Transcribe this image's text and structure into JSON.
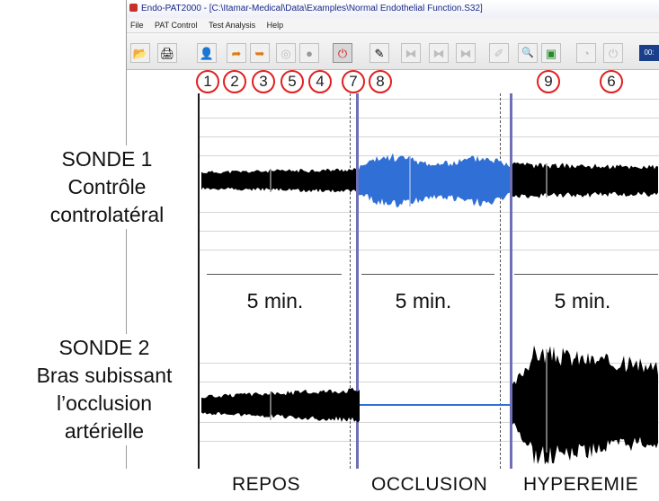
{
  "window": {
    "title": "Endo-PAT2000 - [C:\\Itamar-Medical\\Data\\Examples\\Normal Endothelial Function.S32]"
  },
  "menu": {
    "items": [
      "File",
      "PAT Control",
      "Test Analysis",
      "Help"
    ]
  },
  "toolbar": {
    "buttons": [
      {
        "name": "open-file-icon",
        "glyph": "📂"
      },
      {
        "name": "print-icon",
        "glyph": "🖨"
      },
      {
        "name": "patient-info-icon",
        "glyph": "👤"
      },
      {
        "name": "export-icon",
        "glyph": "➦"
      },
      {
        "name": "import-icon",
        "glyph": "➥"
      },
      {
        "name": "calibrate-icon",
        "glyph": "◎"
      },
      {
        "name": "record-icon",
        "glyph": "●"
      },
      {
        "name": "stop-icon",
        "glyph": "⏻"
      },
      {
        "name": "marker-icon",
        "glyph": "✎"
      },
      {
        "name": "segment-start-icon",
        "glyph": "⧓"
      },
      {
        "name": "segment-mid-icon",
        "glyph": "⧓"
      },
      {
        "name": "segment-end-icon",
        "glyph": "⧓"
      },
      {
        "name": "pen-icon",
        "glyph": "✐"
      },
      {
        "name": "zoom-icon",
        "glyph": "🔍"
      },
      {
        "name": "spreadsheet-icon",
        "glyph": "▣"
      },
      {
        "name": "timer-icon",
        "glyph": "◔"
      },
      {
        "name": "power-icon",
        "glyph": "⏻"
      }
    ],
    "counter": "00:"
  },
  "callouts": [
    "1",
    "2",
    "3",
    "5",
    "4",
    "7",
    "8",
    "9",
    "6"
  ],
  "probe1": {
    "line1": "SONDE 1",
    "line2": "Contrôle",
    "line3": "controlatéral"
  },
  "probe2": {
    "line1": "SONDE 2",
    "line2": "Bras subissant",
    "line3": "l’occlusion",
    "line4": "artérielle"
  },
  "durations": [
    "5 min.",
    "5 min.",
    "5 min."
  ],
  "phases": {
    "rest": "REPOS",
    "occlusion": "OCCLUSION",
    "hyperemia": "HYPEREMIE"
  },
  "colors": {
    "signal": "#000000",
    "occlusion_highlight": "#2f6fd6",
    "marker_line": "#6f6fb5",
    "callout_ring": "#e02020"
  }
}
